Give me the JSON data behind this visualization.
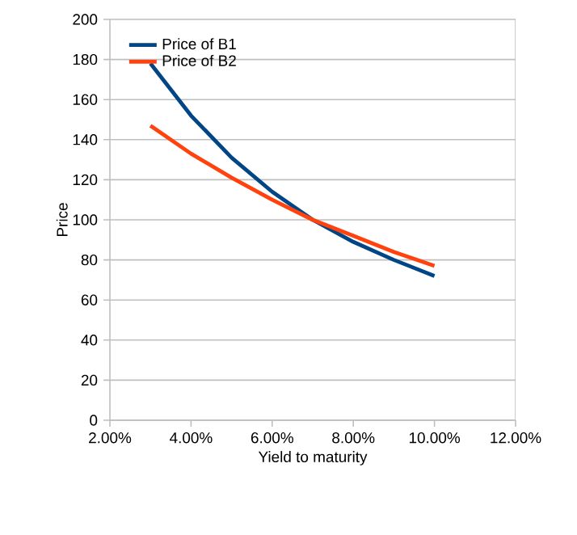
{
  "chart_data": {
    "type": "line",
    "xlabel": "Yield to maturity",
    "ylabel": "Price",
    "x": [
      3,
      4,
      5,
      6,
      7,
      8,
      9,
      10
    ],
    "series": [
      {
        "name": "Price of B1",
        "color": "#004586",
        "values": [
          178,
          152,
          131,
          114,
          100,
          89,
          80,
          72
        ]
      },
      {
        "name": "Price of B2",
        "color": "#ff420e",
        "values": [
          147,
          133,
          121,
          110,
          100,
          92,
          84,
          77
        ]
      }
    ],
    "xlim": [
      2,
      12
    ],
    "xticks": [
      {
        "value": 2,
        "label": "2.00%"
      },
      {
        "value": 4,
        "label": "4.00%"
      },
      {
        "value": 6,
        "label": "6.00%"
      },
      {
        "value": 8,
        "label": "8.00%"
      },
      {
        "value": 10,
        "label": "10.00%"
      },
      {
        "value": 12,
        "label": "12.00%"
      }
    ],
    "ylim": [
      0,
      200
    ],
    "yticks": [
      0,
      20,
      40,
      60,
      80,
      100,
      120,
      140,
      160,
      180,
      200
    ],
    "grid": "y",
    "legend": "top left",
    "marker": "none",
    "line_style": "solid"
  }
}
